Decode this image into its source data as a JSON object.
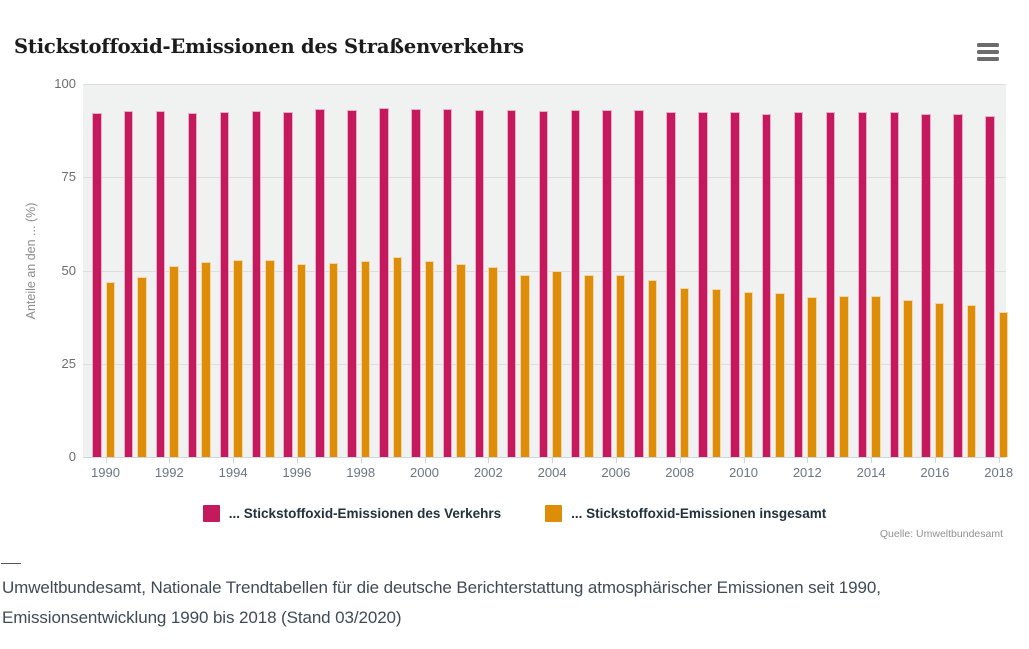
{
  "header": {
    "title": "Stickstoffoxid-Emissionen des Straßenverkehrs"
  },
  "chart_data": {
    "type": "bar",
    "title": "Stickstoffoxid-Emissionen des Straßenverkehrs",
    "xlabel": "",
    "ylabel": "Anteile an den ... (%)",
    "ylim": [
      0,
      100
    ],
    "yticks": [
      0,
      25,
      50,
      75,
      100
    ],
    "grid": true,
    "legend_position": "bottom",
    "plot_background": "#f0f1f1",
    "categories": [
      1990,
      1991,
      1992,
      1993,
      1994,
      1995,
      1996,
      1997,
      1998,
      1999,
      2000,
      2001,
      2002,
      2003,
      2004,
      2005,
      2006,
      2007,
      2008,
      2009,
      2010,
      2011,
      2012,
      2013,
      2014,
      2015,
      2016,
      2017,
      2018
    ],
    "x_tick_labels": [
      "1990",
      "1992",
      "1994",
      "1996",
      "1998",
      "2000",
      "2002",
      "2004",
      "2006",
      "2008",
      "2010",
      "2012",
      "2014",
      "2016",
      "2018"
    ],
    "series": [
      {
        "name": "... Stickstoffoxid-Emissionen des Verkehrs",
        "color": "#c4195d",
        "values": [
          92.2,
          92.7,
          92.8,
          92.2,
          92.4,
          92.8,
          92.6,
          93.2,
          92.9,
          93.6,
          93.3,
          93.3,
          93.1,
          92.9,
          92.7,
          92.9,
          93.0,
          92.9,
          92.4,
          92.4,
          92.4,
          92.0,
          92.5,
          92.6,
          92.5,
          92.6,
          91.9,
          92.0,
          91.3
        ]
      },
      {
        "name": "... Stickstoffoxid-Emissionen insgesamt",
        "color": "#de8d08",
        "values": [
          46.8,
          48.3,
          51.2,
          52.3,
          52.8,
          52.9,
          51.8,
          51.9,
          52.5,
          53.7,
          52.6,
          51.7,
          50.9,
          48.8,
          49.9,
          48.8,
          48.8,
          47.5,
          45.3,
          45.0,
          44.3,
          43.9,
          43.0,
          43.1,
          43.3,
          42.1,
          41.2,
          40.7,
          39.0
        ]
      }
    ]
  },
  "source_note": "Quelle: Umweltbundesamt",
  "footer": {
    "citation": "Umweltbundesamt, Nationale Trendtabellen für die deutsche Berichterstattung atmosphärischer Emissionen seit 1990, Emissionsentwicklung 1990 bis 2018 (Stand 03/2020)"
  }
}
